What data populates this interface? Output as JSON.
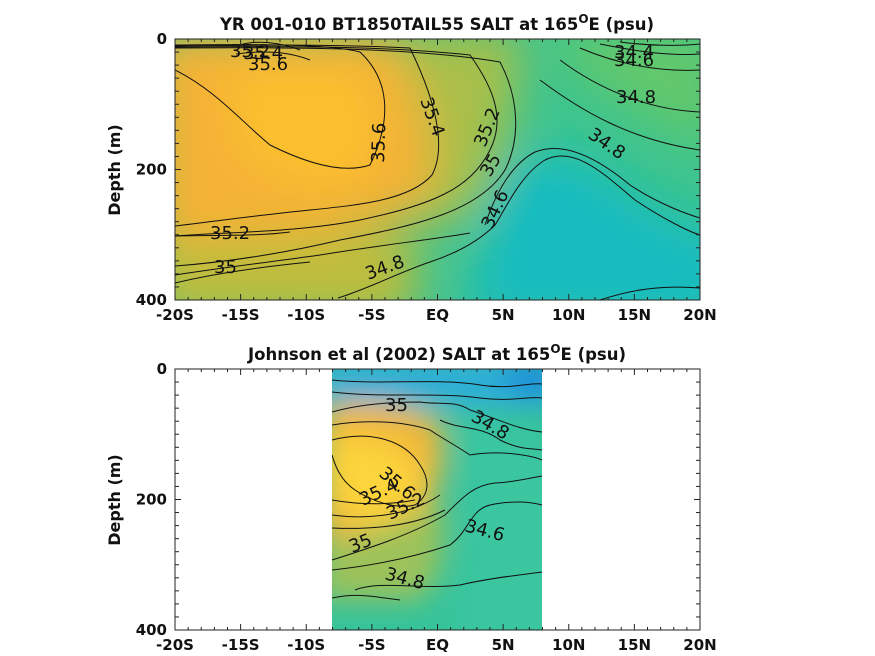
{
  "chart_data": [
    {
      "type": "heatmap",
      "title": "YR 001-010 BT1850TAIL55 SALT at 165",
      "title_sup": "O",
      "title_tail": "E (psu)",
      "ylabel": "Depth (m)",
      "xlabel": "",
      "x_ticks": [
        "-20S",
        "-15S",
        "-10S",
        "-5S",
        "EQ",
        "5N",
        "10N",
        "15N",
        "20N"
      ],
      "x_tick_values": [
        -20,
        -15,
        -10,
        -5,
        0,
        5,
        10,
        15,
        20
      ],
      "y_ticks": [
        "0",
        "200",
        "400"
      ],
      "y_tick_values": [
        0,
        200,
        400
      ],
      "xlim": [
        -20,
        20
      ],
      "ylim": [
        0,
        400
      ],
      "y_reversed": true,
      "data_extent_x": [
        -20,
        20
      ],
      "colormap": "parula",
      "contour_labels": [
        {
          "text": "35.2",
          "lat": -13.5,
          "depth": 10
        },
        {
          "text": "35.4",
          "lat": -12.8,
          "depth": 15
        },
        {
          "text": "35.6",
          "lat": -12.6,
          "depth": 32
        },
        {
          "text": "35.6",
          "lat": -4.3,
          "depth": 150
        },
        {
          "text": "35.4",
          "lat": -0.2,
          "depth": 118
        },
        {
          "text": "35.2",
          "lat": 2.5,
          "depth": 150
        },
        {
          "text": "35",
          "lat": 2.0,
          "depth": 185
        },
        {
          "text": "34.6",
          "lat": 2.3,
          "depth": 265
        },
        {
          "text": "34.8",
          "lat": -3.0,
          "depth": 352
        },
        {
          "text": "35.2",
          "lat": -16.0,
          "depth": 295
        },
        {
          "text": "35",
          "lat": -16.0,
          "depth": 350
        },
        {
          "text": "34.4",
          "lat": 15.3,
          "depth": 18
        },
        {
          "text": "34.6",
          "lat": 15.3,
          "depth": 30
        },
        {
          "text": "34.8",
          "lat": 15.5,
          "depth": 87
        },
        {
          "text": "34.8",
          "lat": 12.5,
          "depth": 165
        }
      ]
    },
    {
      "type": "heatmap",
      "title": "Johnson et al (2002) SALT at 165",
      "title_sup": "O",
      "title_tail": "E (psu)",
      "ylabel": "Depth (m)",
      "xlabel": "",
      "x_ticks": [
        "-20S",
        "-15S",
        "-10S",
        "-5S",
        "EQ",
        "5N",
        "10N",
        "15N",
        "20N"
      ],
      "x_tick_values": [
        -20,
        -15,
        -10,
        -5,
        0,
        5,
        10,
        15,
        20
      ],
      "y_ticks": [
        "0",
        "200",
        "400"
      ],
      "y_tick_values": [
        0,
        200,
        400
      ],
      "xlim": [
        -20,
        20
      ],
      "ylim": [
        0,
        400
      ],
      "y_reversed": true,
      "data_extent_x": [
        -8,
        8
      ],
      "colormap": "parula",
      "contour_labels": [
        {
          "text": "35",
          "lat": -2.8,
          "depth": 55
        },
        {
          "text": "34.8",
          "lat": 4.0,
          "depth": 85
        },
        {
          "text": "35.6",
          "lat": -3.6,
          "depth": 172
        },
        {
          "text": "35.4",
          "lat": -4.8,
          "depth": 200
        },
        {
          "text": "35.2",
          "lat": -2.0,
          "depth": 210
        },
        {
          "text": "35",
          "lat": -5.7,
          "depth": 265
        },
        {
          "text": "34.6",
          "lat": 4.0,
          "depth": 248
        },
        {
          "text": "34.8",
          "lat": -2.0,
          "depth": 322
        }
      ]
    }
  ]
}
